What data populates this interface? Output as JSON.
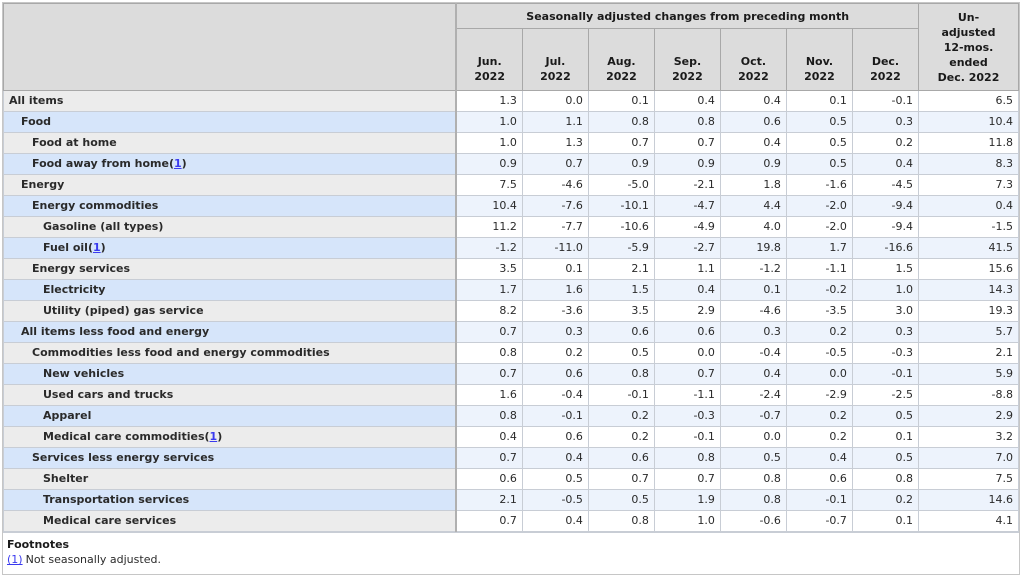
{
  "table": {
    "group_header": "Seasonally adjusted changes from preceding month",
    "unadjusted_header": "Un-\nadjusted\n12-mos.\nended\nDec. 2022",
    "columns": [
      "Jun.\n2022",
      "Jul.\n2022",
      "Aug.\n2022",
      "Sep.\n2022",
      "Oct.\n2022",
      "Nov.\n2022",
      "Dec.\n2022"
    ],
    "rows": [
      {
        "label": "All items",
        "indent": 0,
        "footnote": null,
        "values": [
          "1.3",
          "0.0",
          "0.1",
          "0.4",
          "0.4",
          "0.1",
          "-0.1",
          "6.5"
        ]
      },
      {
        "label": "Food",
        "indent": 1,
        "footnote": null,
        "values": [
          "1.0",
          "1.1",
          "0.8",
          "0.8",
          "0.6",
          "0.5",
          "0.3",
          "10.4"
        ]
      },
      {
        "label": "Food at home",
        "indent": 2,
        "footnote": null,
        "values": [
          "1.0",
          "1.3",
          "0.7",
          "0.7",
          "0.4",
          "0.5",
          "0.2",
          "11.8"
        ]
      },
      {
        "label": "Food away from home",
        "indent": 2,
        "footnote": "1",
        "values": [
          "0.9",
          "0.7",
          "0.9",
          "0.9",
          "0.9",
          "0.5",
          "0.4",
          "8.3"
        ]
      },
      {
        "label": "Energy",
        "indent": 1,
        "footnote": null,
        "values": [
          "7.5",
          "-4.6",
          "-5.0",
          "-2.1",
          "1.8",
          "-1.6",
          "-4.5",
          "7.3"
        ]
      },
      {
        "label": "Energy commodities",
        "indent": 2,
        "footnote": null,
        "values": [
          "10.4",
          "-7.6",
          "-10.1",
          "-4.7",
          "4.4",
          "-2.0",
          "-9.4",
          "0.4"
        ]
      },
      {
        "label": "Gasoline (all types)",
        "indent": 3,
        "footnote": null,
        "values": [
          "11.2",
          "-7.7",
          "-10.6",
          "-4.9",
          "4.0",
          "-2.0",
          "-9.4",
          "-1.5"
        ]
      },
      {
        "label": "Fuel oil",
        "indent": 3,
        "footnote": "1",
        "values": [
          "-1.2",
          "-11.0",
          "-5.9",
          "-2.7",
          "19.8",
          "1.7",
          "-16.6",
          "41.5"
        ]
      },
      {
        "label": "Energy services",
        "indent": 2,
        "footnote": null,
        "values": [
          "3.5",
          "0.1",
          "2.1",
          "1.1",
          "-1.2",
          "-1.1",
          "1.5",
          "15.6"
        ]
      },
      {
        "label": "Electricity",
        "indent": 3,
        "footnote": null,
        "values": [
          "1.7",
          "1.6",
          "1.5",
          "0.4",
          "0.1",
          "-0.2",
          "1.0",
          "14.3"
        ]
      },
      {
        "label": "Utility (piped) gas service",
        "indent": 3,
        "footnote": null,
        "values": [
          "8.2",
          "-3.6",
          "3.5",
          "2.9",
          "-4.6",
          "-3.5",
          "3.0",
          "19.3"
        ]
      },
      {
        "label": "All items less food and energy",
        "indent": 1,
        "footnote": null,
        "values": [
          "0.7",
          "0.3",
          "0.6",
          "0.6",
          "0.3",
          "0.2",
          "0.3",
          "5.7"
        ]
      },
      {
        "label": "Commodities less food and energy commodities",
        "indent": 2,
        "footnote": null,
        "values": [
          "0.8",
          "0.2",
          "0.5",
          "0.0",
          "-0.4",
          "-0.5",
          "-0.3",
          "2.1"
        ]
      },
      {
        "label": "New vehicles",
        "indent": 3,
        "footnote": null,
        "values": [
          "0.7",
          "0.6",
          "0.8",
          "0.7",
          "0.4",
          "0.0",
          "-0.1",
          "5.9"
        ]
      },
      {
        "label": "Used cars and trucks",
        "indent": 3,
        "footnote": null,
        "values": [
          "1.6",
          "-0.4",
          "-0.1",
          "-1.1",
          "-2.4",
          "-2.9",
          "-2.5",
          "-8.8"
        ]
      },
      {
        "label": "Apparel",
        "indent": 3,
        "footnote": null,
        "values": [
          "0.8",
          "-0.1",
          "0.2",
          "-0.3",
          "-0.7",
          "0.2",
          "0.5",
          "2.9"
        ]
      },
      {
        "label": "Medical care commodities",
        "indent": 3,
        "footnote": "1",
        "values": [
          "0.4",
          "0.6",
          "0.2",
          "-0.1",
          "0.0",
          "0.2",
          "0.1",
          "3.2"
        ]
      },
      {
        "label": "Services less energy services",
        "indent": 2,
        "footnote": null,
        "values": [
          "0.7",
          "0.4",
          "0.6",
          "0.8",
          "0.5",
          "0.4",
          "0.5",
          "7.0"
        ]
      },
      {
        "label": "Shelter",
        "indent": 3,
        "footnote": null,
        "values": [
          "0.6",
          "0.5",
          "0.7",
          "0.7",
          "0.8",
          "0.6",
          "0.8",
          "7.5"
        ]
      },
      {
        "label": "Transportation services",
        "indent": 3,
        "footnote": null,
        "values": [
          "2.1",
          "-0.5",
          "0.5",
          "1.9",
          "0.8",
          "-0.1",
          "0.2",
          "14.6"
        ]
      },
      {
        "label": "Medical care services",
        "indent": 3,
        "footnote": null,
        "values": [
          "0.7",
          "0.4",
          "0.8",
          "1.0",
          "-0.6",
          "-0.7",
          "0.1",
          "4.1"
        ]
      }
    ]
  },
  "footnotes": {
    "title": "Footnotes",
    "items": [
      {
        "marker": "(1)",
        "text": "Not seasonally adjusted."
      }
    ]
  },
  "colors": {
    "header_bg": "#dcdcdc",
    "row_label_gray": "#ececec",
    "row_label_blue": "#d6e5fa",
    "data_row_white": "#ffffff",
    "data_row_blue": "#edf3fc",
    "link_blue": "#3a3aef",
    "header_border": "#a8a8a8",
    "body_border": "#c8cdd5"
  }
}
